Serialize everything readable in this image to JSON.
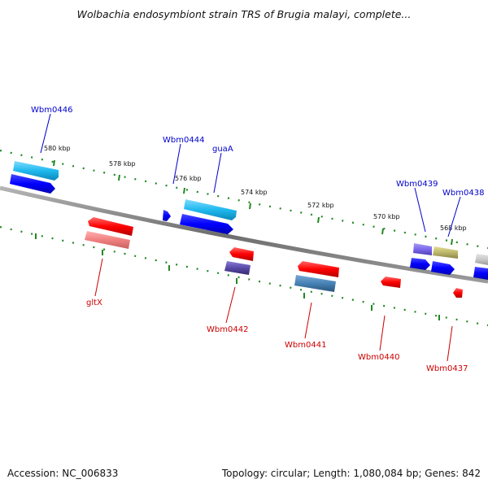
{
  "title": "Wolbachia endosymbiont strain TRS of Brugia malayi, complete...",
  "accession": "Accession: NC_006833",
  "summary": "Topology: circular; Length: 1,080,084 bp; Genes: 842",
  "colors": {
    "label_forward": "#0000cc",
    "label_reverse": "#cc0000",
    "tick_green": "#228822",
    "backbone": "#808080"
  },
  "kbp_labels": [
    "580 kbp",
    "578 kbp",
    "576 kbp",
    "574 kbp",
    "572 kbp",
    "570 kbp",
    "568 kbp"
  ],
  "forward_genes": [
    "Wbm0446",
    "Wbm0444",
    "guaA",
    "Wbm0439",
    "Wbm0438"
  ],
  "reverse_genes": [
    "gltX",
    "Wbm0442",
    "Wbm0441",
    "Wbm0440",
    "Wbm0437"
  ]
}
